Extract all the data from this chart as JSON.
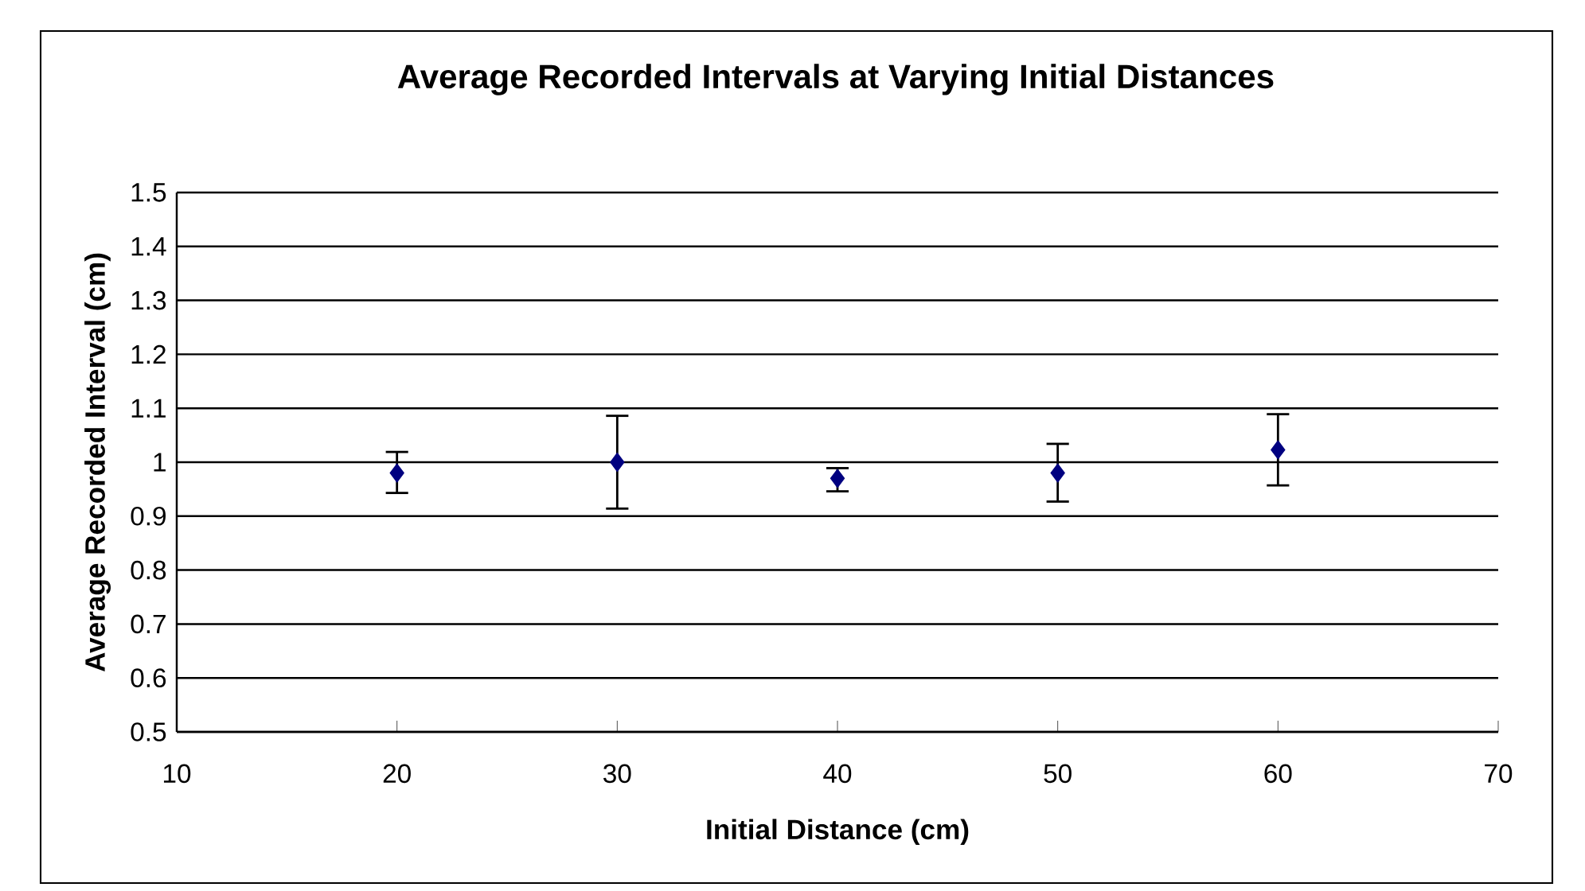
{
  "chart_data": {
    "type": "scatter",
    "title": "Average Recorded Intervals at Varying Initial Distances",
    "xlabel": "Initial Distance (cm)",
    "ylabel": "Average Recorded Interval (cm)",
    "x": [
      20,
      30,
      40,
      50,
      60
    ],
    "values": [
      0.98,
      1.0,
      0.97,
      0.98,
      1.023
    ],
    "errors": [
      [
        0.943,
        1.019
      ],
      [
        0.914,
        1.086
      ],
      [
        0.946,
        0.989
      ],
      [
        0.927,
        1.034
      ],
      [
        0.957,
        1.089
      ]
    ],
    "color": "#000080",
    "marker": "diamond",
    "grid": "y",
    "xlim": [
      10,
      70
    ],
    "xticks": [
      10,
      20,
      30,
      40,
      50,
      60,
      70
    ],
    "ylim": [
      0.5,
      1.5
    ],
    "yticks": [
      0.5,
      0.6,
      0.7,
      0.8,
      0.9,
      1,
      1.1,
      1.2,
      1.3,
      1.4,
      1.5
    ]
  }
}
